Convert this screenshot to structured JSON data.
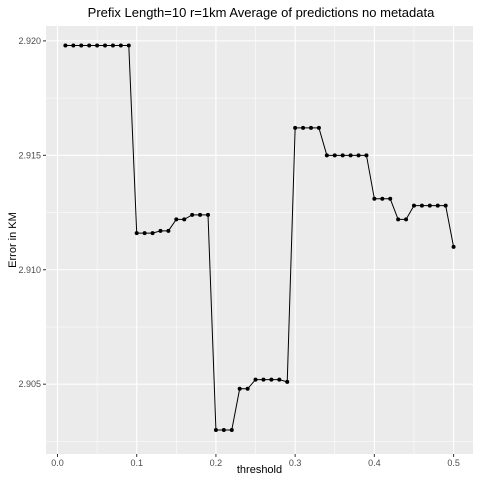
{
  "chart_data": {
    "type": "line",
    "title": "Prefix Length=10   r=1km  Average of predictions  no metadata",
    "xlabel": "threshold",
    "ylabel": "Error in KM",
    "xlim": [
      -0.0145,
      0.5245
    ],
    "ylim": [
      2.90195,
      2.92065
    ],
    "x_ticks": [
      {
        "value": 0.0,
        "label": "0.0"
      },
      {
        "value": 0.1,
        "label": "0.1"
      },
      {
        "value": 0.2,
        "label": "0.2"
      },
      {
        "value": 0.3,
        "label": "0.3"
      },
      {
        "value": 0.4,
        "label": "0.4"
      },
      {
        "value": 0.5,
        "label": "0.5"
      }
    ],
    "y_ticks": [
      {
        "value": 2.905,
        "label": "2.905"
      },
      {
        "value": 2.91,
        "label": "2.910"
      },
      {
        "value": 2.915,
        "label": "2.915"
      },
      {
        "value": 2.92,
        "label": "2.920"
      }
    ],
    "grid": true,
    "colors": {
      "panel": "#ebebeb",
      "grid_major": "#ffffff",
      "series": "#000000"
    },
    "series": [
      {
        "x": [
          0.01,
          0.02,
          0.03,
          0.04,
          0.05,
          0.06,
          0.07,
          0.08,
          0.09,
          0.1,
          0.11,
          0.12,
          0.13,
          0.14,
          0.15,
          0.16,
          0.17,
          0.18,
          0.19,
          0.2,
          0.21,
          0.22,
          0.23,
          0.24,
          0.25,
          0.26,
          0.27,
          0.28,
          0.29,
          0.3,
          0.31,
          0.32,
          0.33,
          0.34,
          0.35,
          0.36,
          0.37,
          0.38,
          0.39,
          0.4,
          0.41,
          0.42,
          0.43,
          0.44,
          0.45,
          0.46,
          0.47,
          0.48,
          0.49,
          0.5
        ],
        "values": [
          2.9198,
          2.9198,
          2.9198,
          2.9198,
          2.9198,
          2.9198,
          2.9198,
          2.9198,
          2.9198,
          2.9116,
          2.9116,
          2.9116,
          2.9117,
          2.9117,
          2.9122,
          2.9122,
          2.9124,
          2.9124,
          2.9124,
          2.903,
          2.903,
          2.903,
          2.9048,
          2.9048,
          2.9052,
          2.9052,
          2.9052,
          2.9052,
          2.9051,
          2.9162,
          2.9162,
          2.9162,
          2.9162,
          2.915,
          2.915,
          2.915,
          2.915,
          2.915,
          2.915,
          2.9131,
          2.9131,
          2.9131,
          2.9122,
          2.9122,
          2.9128,
          2.9128,
          2.9128,
          2.9128,
          2.9128,
          2.911
        ]
      }
    ]
  }
}
